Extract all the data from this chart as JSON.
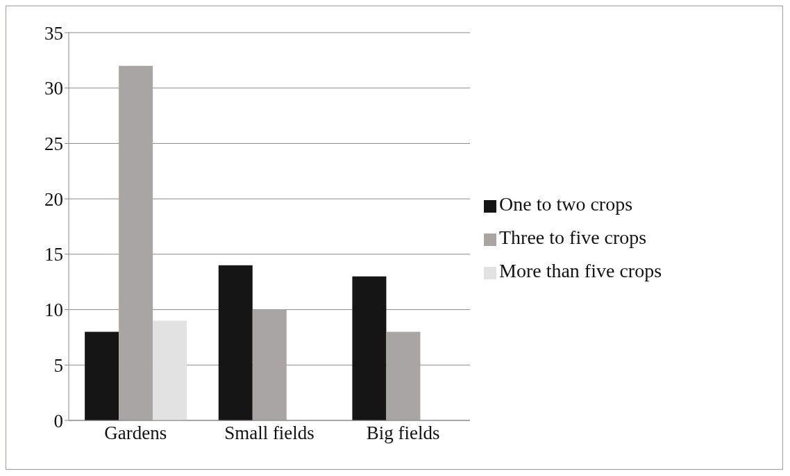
{
  "chart_data": {
    "type": "bar",
    "categories": [
      "Gardens",
      "Small fields",
      "Big fields"
    ],
    "series": [
      {
        "name": "One to two crops",
        "color": "#151515",
        "values": [
          8,
          14,
          13
        ]
      },
      {
        "name": "Three to five crops",
        "color": "#a9a5a4",
        "values": [
          32,
          10,
          8
        ]
      },
      {
        "name": "More than five crops",
        "color": "#e2e2e2",
        "values": [
          9,
          0,
          0
        ]
      }
    ],
    "ylim": [
      0,
      35
    ],
    "yticks": [
      0,
      5,
      10,
      15,
      20,
      25,
      30,
      35
    ],
    "grid": "y",
    "legend": "right"
  }
}
